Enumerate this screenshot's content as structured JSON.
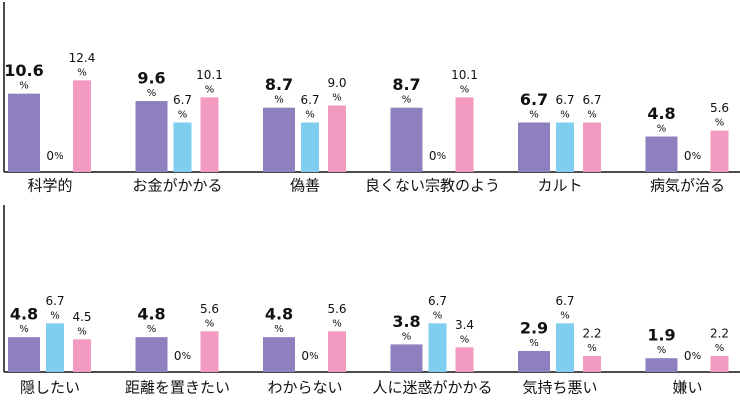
{
  "chart_data": [
    {
      "type": "bar",
      "unit": "%",
      "ylim": [
        0,
        23
      ],
      "categories": [
        "科学的",
        "お金がかかる",
        "偽善",
        "良くない宗教のよう",
        "カルト",
        "病気が治る"
      ],
      "series": [
        {
          "color": "#8e7fbf",
          "values": [
            10.6,
            9.6,
            8.7,
            8.7,
            6.7,
            4.8
          ],
          "value_labels": [
            "10.6",
            "9.6",
            "8.7",
            "8.7",
            "6.7",
            "4.8"
          ]
        },
        {
          "color": "#7fcdef",
          "values": [
            0,
            6.7,
            6.7,
            0,
            6.7,
            0
          ],
          "value_labels": [
            "0",
            "6.7",
            "6.7",
            "0",
            "6.7",
            "0"
          ]
        },
        {
          "color": "#f29ac0",
          "values": [
            12.4,
            10.1,
            9.0,
            10.1,
            6.7,
            5.6
          ],
          "value_labels": [
            "12.4",
            "10.1",
            "9.0",
            "10.1",
            "6.7",
            "5.6"
          ]
        }
      ]
    },
    {
      "type": "bar",
      "unit": "%",
      "ylim": [
        0,
        23
      ],
      "categories": [
        "隠したい",
        "距離を置きたい",
        "わからない",
        "人に迷惑がかかる",
        "気持ち悪い",
        "嫌い"
      ],
      "series": [
        {
          "color": "#8e7fbf",
          "values": [
            4.8,
            4.8,
            4.8,
            3.8,
            2.9,
            1.9
          ],
          "value_labels": [
            "4.8",
            "4.8",
            "4.8",
            "3.8",
            "2.9",
            "1.9"
          ]
        },
        {
          "color": "#7fcdef",
          "values": [
            6.7,
            0,
            0,
            6.7,
            6.7,
            0
          ],
          "value_labels": [
            "6.7",
            "0",
            "0",
            "6.7",
            "6.7",
            "0"
          ]
        },
        {
          "color": "#f29ac0",
          "values": [
            4.5,
            5.6,
            5.6,
            3.4,
            2.2,
            2.2
          ],
          "value_labels": [
            "4.5",
            "5.6",
            "5.6",
            "3.4",
            "2.2",
            "2.2"
          ]
        }
      ]
    }
  ]
}
